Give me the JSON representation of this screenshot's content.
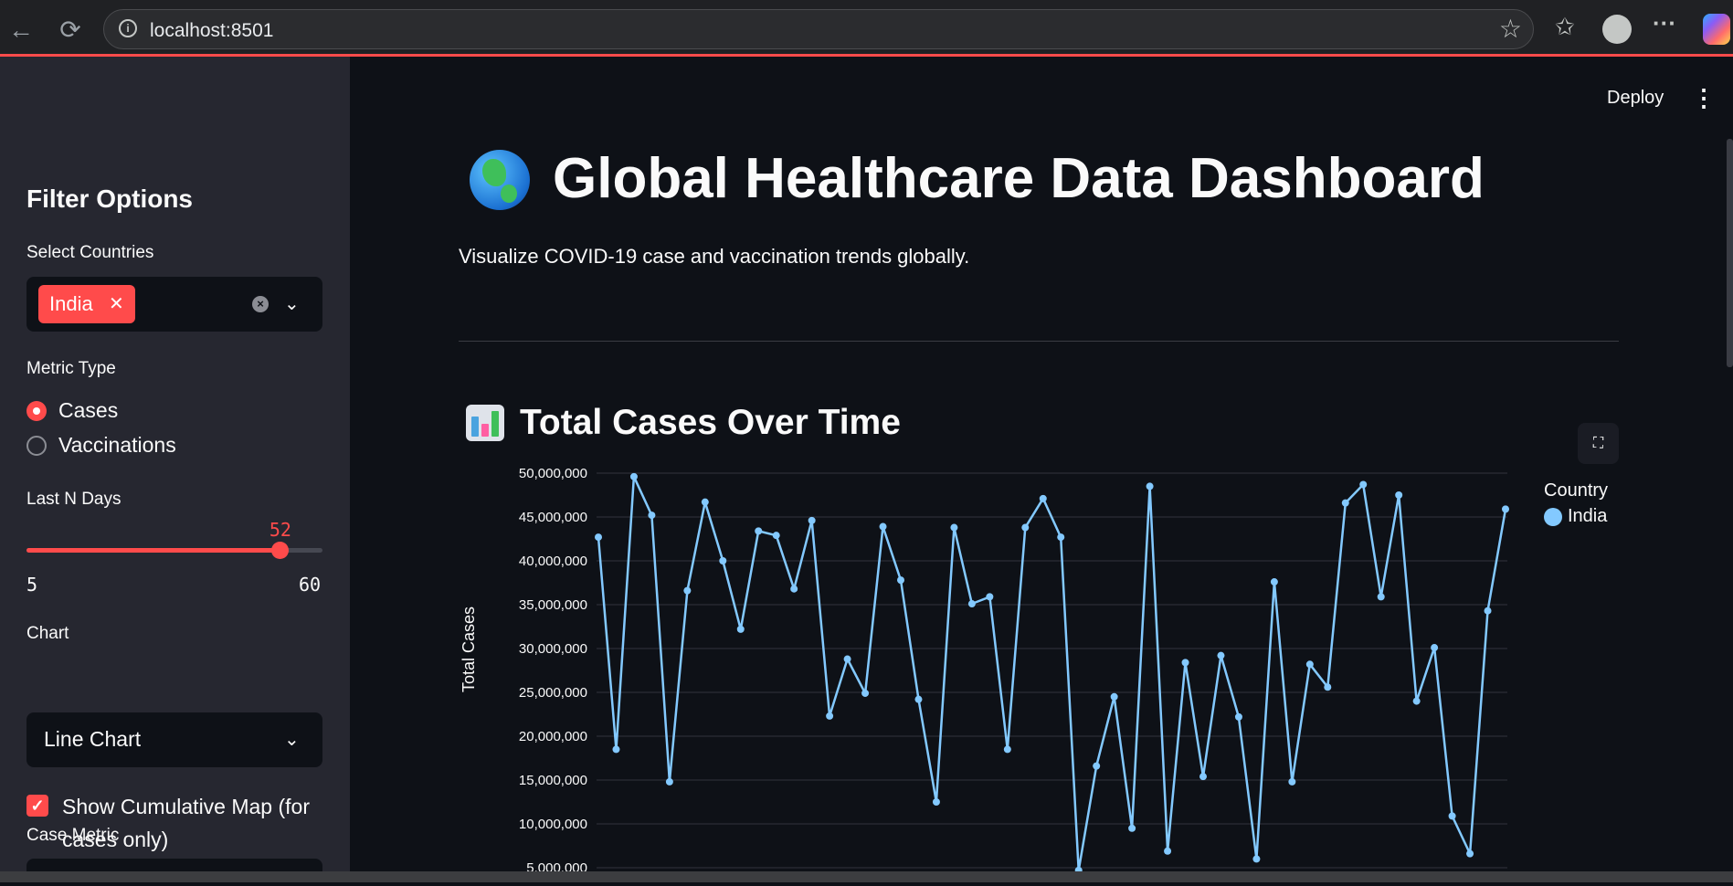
{
  "browser": {
    "url": "localhost:8501"
  },
  "header": {
    "deploy_label": "Deploy"
  },
  "sidebar": {
    "title": "Filter Options",
    "countries_label": "Select Countries",
    "selected_countries": [
      "India"
    ],
    "metric_label": "Metric Type",
    "metric_options": [
      "Cases",
      "Vaccinations"
    ],
    "metric_selected": "Cases",
    "days_label": "Last N Days",
    "days_value": "52",
    "days_min": "5",
    "days_max": "60",
    "chart_label": "Chart",
    "chart_value": "Line Chart",
    "cumulative_label": "Show Cumulative Map (for cases only)",
    "cumulative_checked": true,
    "case_metric_label": "Case Metric"
  },
  "main": {
    "title": "Global Healthcare Data Dashboard",
    "title_icon": "globe-icon",
    "subtitle": "Visualize COVID-19 case and vaccination trends globally.",
    "section_title": "Total Cases Over Time",
    "section_icon": "bar-chart-icon",
    "legend_title": "Country",
    "legend_item": "India"
  },
  "colors": {
    "accent": "#ff4b4b",
    "series": "#83c9ff",
    "sidebar_bg": "#262730",
    "main_bg": "#0e1117"
  },
  "chart_data": {
    "type": "line",
    "ylabel": "Total Cases",
    "ylim": [
      5000000,
      50000000
    ],
    "yticks": [
      "50,000,000",
      "45,000,000",
      "40,000,000",
      "35,000,000",
      "30,000,000",
      "25,000,000",
      "20,000,000",
      "15,000,000",
      "10,000,000",
      "5,000,000"
    ],
    "series": [
      {
        "name": "India",
        "values": [
          42700000,
          18500000,
          49600000,
          45200000,
          14800000,
          36600000,
          46700000,
          40000000,
          32200000,
          43400000,
          42900000,
          36800000,
          44600000,
          22300000,
          28800000,
          24900000,
          43900000,
          37800000,
          24200000,
          12500000,
          43800000,
          35100000,
          35900000,
          18500000,
          43800000,
          47100000,
          42700000,
          4700000,
          16600000,
          24500000,
          9500000,
          48500000,
          6900000,
          28400000,
          15400000,
          29200000,
          22200000,
          6000000,
          37600000,
          14800000,
          28200000,
          25600000,
          46600000,
          48700000,
          35900000,
          47500000,
          24000000,
          30100000,
          10900000,
          6600000,
          34300000,
          45900000
        ]
      }
    ]
  }
}
